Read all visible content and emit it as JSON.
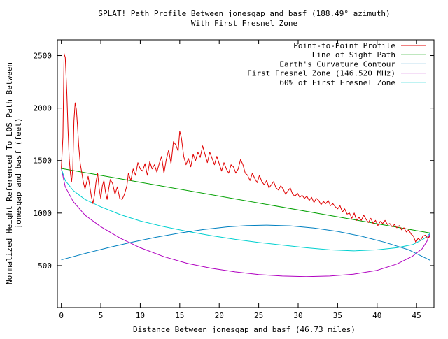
{
  "chart_data": {
    "type": "line",
    "title": "SPLAT! Path Profile Between jonesgap and basf (188.49° azimuth)",
    "subtitle": "With First Fresnel Zone",
    "xlabel": "Distance Between jonesgap and basf (46.73 miles)",
    "ylabel_lines": [
      "Normalized Height Referenced To LOS Path Between",
      "jonesgap and basf (feet)"
    ],
    "xlim": [
      -0.5,
      47.2
    ],
    "ylim": [
      100,
      2650
    ],
    "x_ticks": [
      0,
      5,
      10,
      15,
      20,
      25,
      30,
      35,
      40,
      45
    ],
    "y_ticks": [
      500,
      1000,
      1500,
      2000,
      2500
    ],
    "grid": false,
    "legend_position": "top-right",
    "series": [
      {
        "name": "Point-to-Point Profile",
        "color": "#e00000",
        "points": [
          [
            0.0,
            1420
          ],
          [
            0.2,
            1720
          ],
          [
            0.35,
            2520
          ],
          [
            0.5,
            2480
          ],
          [
            0.7,
            2150
          ],
          [
            0.85,
            1800
          ],
          [
            1.0,
            1520
          ],
          [
            1.15,
            1380
          ],
          [
            1.3,
            1300
          ],
          [
            1.45,
            1420
          ],
          [
            1.6,
            1880
          ],
          [
            1.75,
            2050
          ],
          [
            1.9,
            1990
          ],
          [
            2.05,
            1830
          ],
          [
            2.2,
            1640
          ],
          [
            2.4,
            1470
          ],
          [
            2.6,
            1380
          ],
          [
            2.8,
            1290
          ],
          [
            3.0,
            1230
          ],
          [
            3.2,
            1290
          ],
          [
            3.4,
            1350
          ],
          [
            3.6,
            1260
          ],
          [
            3.8,
            1160
          ],
          [
            4.0,
            1090
          ],
          [
            4.2,
            1170
          ],
          [
            4.4,
            1300
          ],
          [
            4.6,
            1380
          ],
          [
            4.8,
            1230
          ],
          [
            5.0,
            1140
          ],
          [
            5.2,
            1260
          ],
          [
            5.4,
            1310
          ],
          [
            5.6,
            1200
          ],
          [
            5.8,
            1130
          ],
          [
            6.0,
            1230
          ],
          [
            6.2,
            1320
          ],
          [
            6.5,
            1280
          ],
          [
            6.8,
            1180
          ],
          [
            7.1,
            1250
          ],
          [
            7.4,
            1140
          ],
          [
            7.7,
            1130
          ],
          [
            8.0,
            1180
          ],
          [
            8.3,
            1260
          ],
          [
            8.5,
            1380
          ],
          [
            8.8,
            1310
          ],
          [
            9.1,
            1420
          ],
          [
            9.4,
            1360
          ],
          [
            9.7,
            1480
          ],
          [
            10.0,
            1420
          ],
          [
            10.3,
            1400
          ],
          [
            10.6,
            1470
          ],
          [
            10.9,
            1360
          ],
          [
            11.2,
            1490
          ],
          [
            11.5,
            1420
          ],
          [
            11.8,
            1460
          ],
          [
            12.1,
            1390
          ],
          [
            12.4,
            1470
          ],
          [
            12.7,
            1540
          ],
          [
            13.0,
            1380
          ],
          [
            13.3,
            1510
          ],
          [
            13.6,
            1600
          ],
          [
            13.9,
            1470
          ],
          [
            14.2,
            1680
          ],
          [
            14.5,
            1650
          ],
          [
            14.8,
            1590
          ],
          [
            15.0,
            1780
          ],
          [
            15.2,
            1720
          ],
          [
            15.5,
            1540
          ],
          [
            15.8,
            1460
          ],
          [
            16.1,
            1520
          ],
          [
            16.4,
            1440
          ],
          [
            16.7,
            1560
          ],
          [
            17.0,
            1500
          ],
          [
            17.3,
            1580
          ],
          [
            17.6,
            1530
          ],
          [
            17.9,
            1640
          ],
          [
            18.2,
            1560
          ],
          [
            18.5,
            1480
          ],
          [
            18.8,
            1580
          ],
          [
            19.1,
            1520
          ],
          [
            19.4,
            1460
          ],
          [
            19.7,
            1540
          ],
          [
            20.0,
            1470
          ],
          [
            20.3,
            1400
          ],
          [
            20.6,
            1480
          ],
          [
            20.9,
            1420
          ],
          [
            21.2,
            1380
          ],
          [
            21.5,
            1460
          ],
          [
            21.8,
            1440
          ],
          [
            22.1,
            1380
          ],
          [
            22.4,
            1420
          ],
          [
            22.7,
            1510
          ],
          [
            23.0,
            1460
          ],
          [
            23.3,
            1380
          ],
          [
            23.6,
            1360
          ],
          [
            23.9,
            1310
          ],
          [
            24.2,
            1380
          ],
          [
            24.5,
            1330
          ],
          [
            24.8,
            1290
          ],
          [
            25.1,
            1360
          ],
          [
            25.4,
            1300
          ],
          [
            25.7,
            1270
          ],
          [
            26.0,
            1310
          ],
          [
            26.3,
            1240
          ],
          [
            26.6,
            1270
          ],
          [
            26.9,
            1300
          ],
          [
            27.2,
            1240
          ],
          [
            27.5,
            1220
          ],
          [
            27.8,
            1260
          ],
          [
            28.1,
            1230
          ],
          [
            28.4,
            1180
          ],
          [
            28.7,
            1210
          ],
          [
            29.0,
            1240
          ],
          [
            29.3,
            1180
          ],
          [
            29.6,
            1160
          ],
          [
            29.9,
            1190
          ],
          [
            30.2,
            1150
          ],
          [
            30.5,
            1170
          ],
          [
            30.8,
            1140
          ],
          [
            31.1,
            1160
          ],
          [
            31.4,
            1120
          ],
          [
            31.7,
            1150
          ],
          [
            32.0,
            1100
          ],
          [
            32.3,
            1140
          ],
          [
            32.6,
            1120
          ],
          [
            32.9,
            1080
          ],
          [
            33.2,
            1110
          ],
          [
            33.5,
            1090
          ],
          [
            33.8,
            1120
          ],
          [
            34.1,
            1070
          ],
          [
            34.4,
            1090
          ],
          [
            34.7,
            1060
          ],
          [
            35.0,
            1040
          ],
          [
            35.3,
            1070
          ],
          [
            35.6,
            1010
          ],
          [
            35.9,
            1040
          ],
          [
            36.2,
            990
          ],
          [
            36.5,
            1000
          ],
          [
            36.8,
            950
          ],
          [
            37.1,
            1000
          ],
          [
            37.4,
            930
          ],
          [
            37.7,
            960
          ],
          [
            38.0,
            930
          ],
          [
            38.3,
            980
          ],
          [
            38.6,
            940
          ],
          [
            38.9,
            910
          ],
          [
            39.2,
            950
          ],
          [
            39.5,
            900
          ],
          [
            39.8,
            930
          ],
          [
            40.1,
            880
          ],
          [
            40.4,
            920
          ],
          [
            40.7,
            900
          ],
          [
            41.0,
            930
          ],
          [
            41.3,
            890
          ],
          [
            41.6,
            900
          ],
          [
            41.9,
            870
          ],
          [
            42.2,
            890
          ],
          [
            42.5,
            860
          ],
          [
            42.8,
            880
          ],
          [
            43.1,
            840
          ],
          [
            43.4,
            860
          ],
          [
            43.7,
            820
          ],
          [
            44.0,
            840
          ],
          [
            44.3,
            800
          ],
          [
            44.6,
            780
          ],
          [
            44.9,
            720
          ],
          [
            45.2,
            760
          ],
          [
            45.5,
            740
          ],
          [
            45.8,
            780
          ],
          [
            46.1,
            790
          ],
          [
            46.4,
            760
          ],
          [
            46.73,
            780
          ]
        ]
      },
      {
        "name": "Line of Sight Path",
        "color": "#00a000",
        "points": [
          [
            0.0,
            1425
          ],
          [
            46.73,
            810
          ]
        ]
      },
      {
        "name": "Earth's Curvature Contour",
        "color": "#0080c0",
        "points": [
          [
            0.0,
            555
          ],
          [
            3.0,
            615
          ],
          [
            6.0,
            672
          ],
          [
            9.0,
            723
          ],
          [
            12.0,
            770
          ],
          [
            15.0,
            810
          ],
          [
            18.0,
            843
          ],
          [
            21.0,
            868
          ],
          [
            23.5,
            880
          ],
          [
            26.0,
            885
          ],
          [
            29.0,
            878
          ],
          [
            32.0,
            858
          ],
          [
            35.0,
            825
          ],
          [
            38.0,
            780
          ],
          [
            41.0,
            721
          ],
          [
            44.0,
            650
          ],
          [
            46.73,
            550
          ]
        ]
      },
      {
        "name": "First Fresnel Zone (146.520 MHz)",
        "color": "#b000c0",
        "points": [
          [
            0.0,
            1425
          ],
          [
            0.5,
            1250
          ],
          [
            1.5,
            1110
          ],
          [
            3.0,
            980
          ],
          [
            5.0,
            870
          ],
          [
            7.5,
            760
          ],
          [
            10.0,
            670
          ],
          [
            13.0,
            585
          ],
          [
            16.0,
            520
          ],
          [
            19.0,
            475
          ],
          [
            22.0,
            440
          ],
          [
            25.0,
            415
          ],
          [
            28.0,
            400
          ],
          [
            31.0,
            395
          ],
          [
            34.0,
            400
          ],
          [
            37.0,
            418
          ],
          [
            40.0,
            455
          ],
          [
            42.5,
            515
          ],
          [
            44.5,
            590
          ],
          [
            45.7,
            660
          ],
          [
            46.3,
            730
          ],
          [
            46.73,
            810
          ]
        ]
      },
      {
        "name": "60% of First Fresnel Zone",
        "color": "#00d0d0",
        "points": [
          [
            0.0,
            1425
          ],
          [
            0.5,
            1310
          ],
          [
            1.5,
            1215
          ],
          [
            3.0,
            1130
          ],
          [
            5.0,
            1060
          ],
          [
            7.5,
            985
          ],
          [
            10.0,
            925
          ],
          [
            13.0,
            870
          ],
          [
            16.0,
            825
          ],
          [
            19.0,
            785
          ],
          [
            22.0,
            750
          ],
          [
            25.0,
            720
          ],
          [
            28.0,
            695
          ],
          [
            31.0,
            670
          ],
          [
            34.0,
            650
          ],
          [
            37.0,
            640
          ],
          [
            40.0,
            650
          ],
          [
            42.5,
            670
          ],
          [
            44.5,
            700
          ],
          [
            45.7,
            745
          ],
          [
            46.3,
            775
          ],
          [
            46.73,
            810
          ]
        ]
      }
    ]
  }
}
